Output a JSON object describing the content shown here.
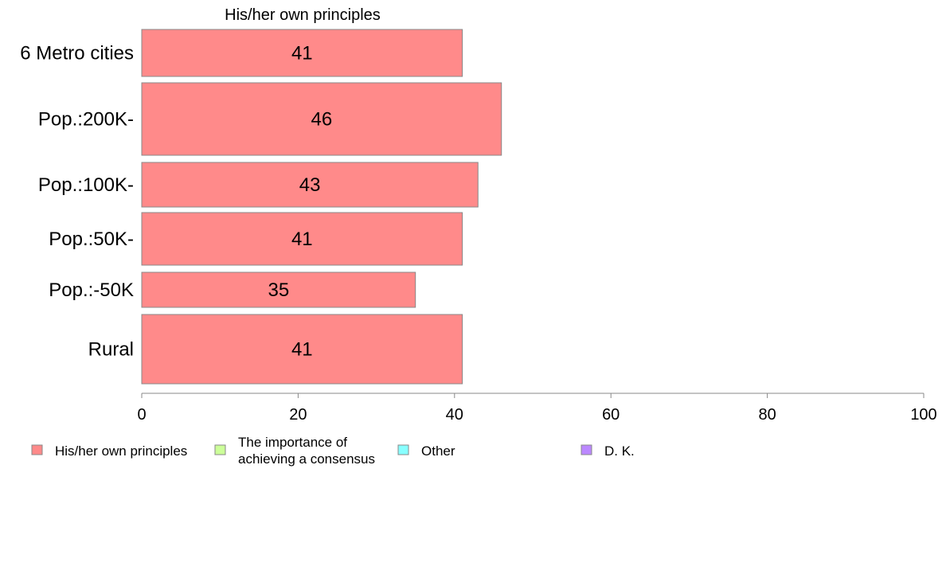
{
  "chart_data": {
    "type": "bar",
    "orientation": "horizontal",
    "panel_title": "His/her own principles",
    "categories": [
      "6 Metro cities",
      "Pop.:200K-",
      "Pop.:100K-",
      "Pop.:50K-",
      "Pop.:-50K",
      "Rural"
    ],
    "series": [
      {
        "name": "His/her own principles",
        "values": [
          41,
          46,
          43,
          41,
          35,
          41
        ],
        "color": "#ff8a8a"
      }
    ],
    "data_labels": [
      "41",
      "46",
      "43",
      "41",
      "35",
      "41"
    ],
    "xlim": [
      0,
      100
    ],
    "x_ticks": [
      0,
      20,
      40,
      60,
      80,
      100
    ],
    "x_tick_labels": [
      "0",
      "20",
      "40",
      "60",
      "80",
      "100"
    ],
    "grid": false,
    "legend": {
      "placement": "bottom",
      "items": [
        {
          "label_lines": [
            "His/her own principles"
          ],
          "color": "#ff8a8a"
        },
        {
          "label_lines": [
            "The importance of",
            "achieving a consensus"
          ],
          "color": "#ccff99"
        },
        {
          "label_lines": [
            "Other"
          ],
          "color": "#88ffff"
        },
        {
          "label_lines": [
            "D. K."
          ],
          "color": "#bb88ff"
        }
      ]
    }
  }
}
